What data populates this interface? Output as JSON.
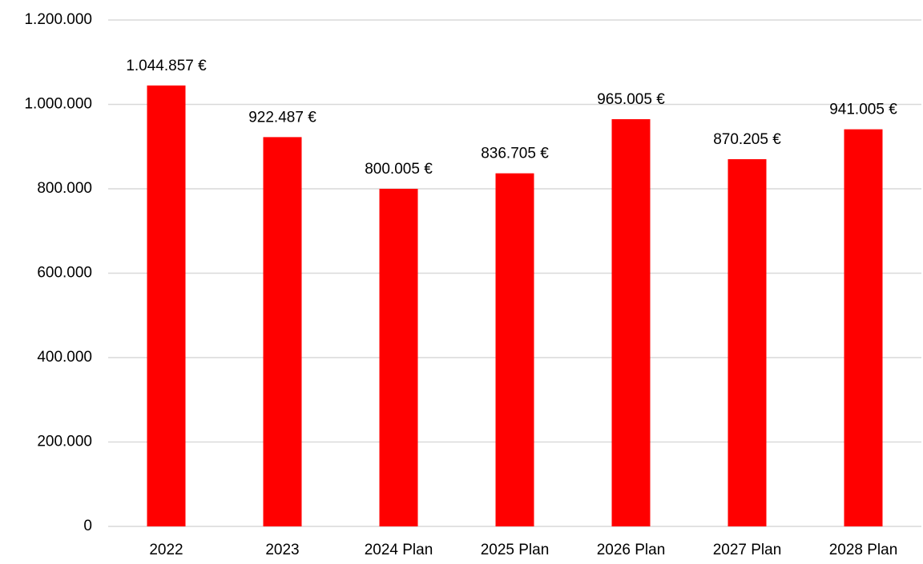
{
  "chart_data": {
    "type": "bar",
    "categories": [
      "2022",
      "2023",
      "2024 Plan",
      "2025 Plan",
      "2026 Plan",
      "2027 Plan",
      "2028 Plan"
    ],
    "values": [
      1044857,
      922487,
      800005,
      836705,
      965005,
      870205,
      941005
    ],
    "value_labels": [
      "1.044.857 €",
      "922.487 €",
      "800.005 €",
      "836.705 €",
      "965.005 €",
      "870.205 €",
      "941.005 €"
    ],
    "color": "#ff0000",
    "ylim": [
      0,
      1200000
    ],
    "yticks": [
      0,
      {
        "value": 200000,
        "label": "200.000"
      },
      {
        "value": 400000,
        "label": "400.000"
      },
      {
        "value": 600000,
        "label": "600.000"
      },
      {
        "value": 800000,
        "label": "800.000"
      },
      {
        "value": 1000000,
        "label": "1.000.000"
      },
      {
        "value": 1200000,
        "label": "1.200.000"
      }
    ],
    "grid": true
  }
}
